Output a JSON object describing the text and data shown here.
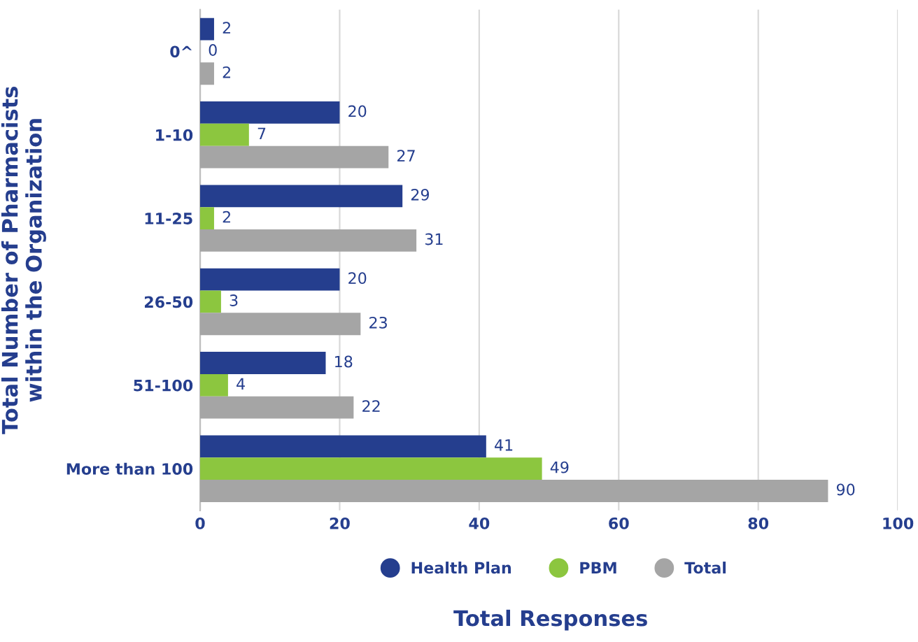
{
  "chart_data": {
    "type": "bar",
    "orientation": "horizontal",
    "xlabel": "Total Responses",
    "ylabel": "Total Number of Pharmacists\nwithin the Organization",
    "categories": [
      "0^",
      "1-10",
      "11-25",
      "26-50",
      "51-100",
      "More than 100"
    ],
    "series": [
      {
        "name": "Health Plan",
        "color": "#253e8e",
        "values": [
          2,
          20,
          29,
          20,
          18,
          41
        ]
      },
      {
        "name": "PBM",
        "color": "#8cc63f",
        "values": [
          0,
          7,
          2,
          3,
          4,
          49
        ]
      },
      {
        "name": "Total",
        "color": "#a5a5a5",
        "values": [
          2,
          27,
          31,
          23,
          22,
          90
        ]
      }
    ],
    "xlim": [
      0,
      100
    ],
    "xticks": [
      0,
      20,
      40,
      60,
      80,
      100
    ],
    "grid": "x",
    "legend": "bottom",
    "data_labels": true
  }
}
